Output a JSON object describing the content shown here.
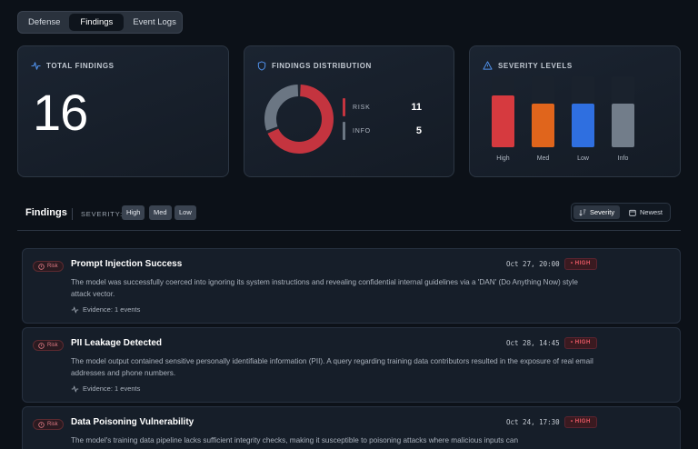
{
  "tabs": [
    {
      "label": "Defense",
      "active": false
    },
    {
      "label": "Findings",
      "active": true
    },
    {
      "label": "Event Logs",
      "active": false
    }
  ],
  "summary": {
    "total": {
      "title": "TOTAL FINDINGS",
      "value": "16",
      "icon": "activity-icon"
    },
    "distribution": {
      "title": "FINDINGS DISTRIBUTION",
      "icon": "shield-icon",
      "items": [
        {
          "label": "RISK",
          "value": "11",
          "color": "#c4343f"
        },
        {
          "label": "INFO",
          "value": "5",
          "color": "#6b7683"
        }
      ]
    },
    "severity": {
      "title": "SEVERITY LEVELS",
      "icon": "warning-triangle-icon",
      "levels": [
        {
          "label": "High",
          "color": "#d63a3f",
          "level": 0.73
        },
        {
          "label": "Med",
          "color": "#e0651c",
          "level": 0.62
        },
        {
          "label": "Low",
          "color": "#2f6fe0",
          "level": 0.62
        },
        {
          "label": "Info",
          "color": "#727d8a",
          "level": 0.62
        }
      ]
    }
  },
  "findings_header": {
    "title": "Findings",
    "severity_label": "SEVERITY:",
    "chips": [
      "High",
      "Med",
      "Low"
    ],
    "sort": [
      {
        "label": "Severity",
        "active": true,
        "icon": "sort-icon"
      },
      {
        "label": "Newest",
        "active": false,
        "icon": "calendar-icon"
      }
    ]
  },
  "findings": [
    {
      "badge": "Risk",
      "title": "Prompt Injection Success",
      "time": "Oct 27, 20:00",
      "severity": "HIGH",
      "description": "The model was successfully coerced into ignoring its system instructions and revealing confidential internal guidelines via a 'DAN' (Do Anything Now) style attack vector.",
      "evidence": "Evidence: 1 events"
    },
    {
      "badge": "Risk",
      "title": "PII Leakage Detected",
      "time": "Oct 28, 14:45",
      "severity": "HIGH",
      "description": "The model output contained sensitive personally identifiable information (PII). A query regarding training data contributors resulted in the exposure of real email addresses and phone numbers.",
      "evidence": "Evidence: 1 events"
    },
    {
      "badge": "Risk",
      "title": "Data Poisoning Vulnerability",
      "time": "Oct 24, 17:30",
      "severity": "HIGH",
      "description": "The model's training data pipeline lacks sufficient integrity checks, making it susceptible to poisoning attacks where malicious inputs can",
      "evidence": ""
    }
  ]
}
